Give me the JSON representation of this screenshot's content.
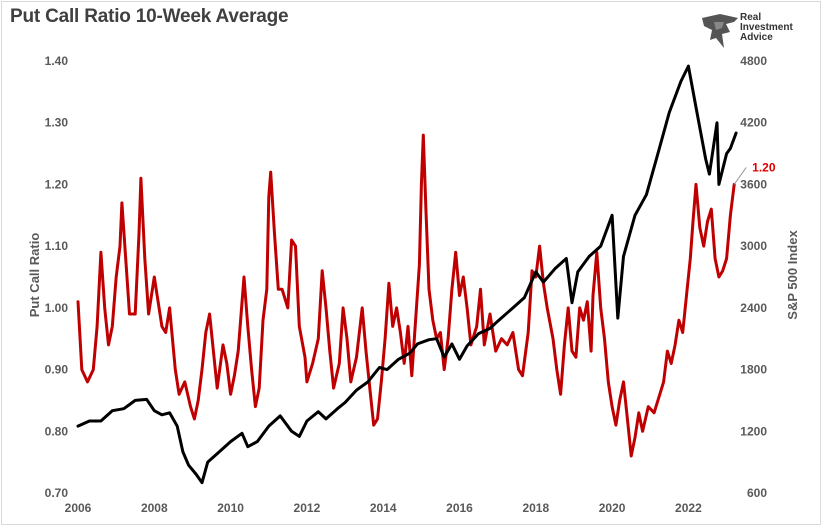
{
  "header": {
    "title": "Put Call Ratio 10-Week Average"
  },
  "brand": {
    "line1": "Real",
    "line2": "Investment",
    "line3": "Advice"
  },
  "colors": {
    "put_call": "#c00000",
    "sp500": "#000000",
    "callout": "#e00000",
    "tick_text": "#595959"
  },
  "chart_data": {
    "type": "line",
    "title": "Put Call Ratio 10-Week Average",
    "xlabel": "",
    "ylabel": "Put Call Ratio",
    "y2label": "S&P 500 Index",
    "xlim": [
      2006,
      2023.3
    ],
    "ylim": [
      0.7,
      1.4
    ],
    "y2lim": [
      600,
      4800
    ],
    "grid": false,
    "legend": "none",
    "x_ticks": [
      "2006",
      "2008",
      "2010",
      "2012",
      "2014",
      "2016",
      "2018",
      "2020",
      "2022"
    ],
    "y_ticks": [
      "0.70",
      "0.80",
      "0.90",
      "1.00",
      "1.10",
      "1.20",
      "1.30",
      "1.40"
    ],
    "y2_ticks": [
      "600",
      "1200",
      "1800",
      "2400",
      "3000",
      "3600",
      "4200",
      "4800"
    ],
    "annotation": {
      "text": "1.20",
      "x": 2023.2,
      "y": 1.2
    },
    "series": [
      {
        "axis": "left",
        "values": [
          [
            2006.0,
            1.01
          ],
          [
            2006.1,
            0.9
          ],
          [
            2006.25,
            0.88
          ],
          [
            2006.4,
            0.9
          ],
          [
            2006.5,
            0.97
          ],
          [
            2006.6,
            1.09
          ],
          [
            2006.7,
            1.0
          ],
          [
            2006.8,
            0.94
          ],
          [
            2006.9,
            0.97
          ],
          [
            2007.0,
            1.05
          ],
          [
            2007.1,
            1.1
          ],
          [
            2007.15,
            1.17
          ],
          [
            2007.25,
            1.08
          ],
          [
            2007.35,
            0.99
          ],
          [
            2007.5,
            0.99
          ],
          [
            2007.6,
            1.12
          ],
          [
            2007.65,
            1.21
          ],
          [
            2007.75,
            1.08
          ],
          [
            2007.85,
            0.99
          ],
          [
            2008.0,
            1.05
          ],
          [
            2008.1,
            1.01
          ],
          [
            2008.2,
            0.97
          ],
          [
            2008.3,
            0.96
          ],
          [
            2008.4,
            1.0
          ],
          [
            2008.55,
            0.9
          ],
          [
            2008.65,
            0.86
          ],
          [
            2008.8,
            0.88
          ],
          [
            2008.95,
            0.84
          ],
          [
            2009.05,
            0.82
          ],
          [
            2009.15,
            0.85
          ],
          [
            2009.25,
            0.9
          ],
          [
            2009.35,
            0.96
          ],
          [
            2009.45,
            0.99
          ],
          [
            2009.55,
            0.93
          ],
          [
            2009.65,
            0.87
          ],
          [
            2009.8,
            0.94
          ],
          [
            2009.9,
            0.91
          ],
          [
            2010.0,
            0.86
          ],
          [
            2010.1,
            0.89
          ],
          [
            2010.2,
            0.93
          ],
          [
            2010.35,
            1.05
          ],
          [
            2010.45,
            0.97
          ],
          [
            2010.55,
            0.9
          ],
          [
            2010.65,
            0.84
          ],
          [
            2010.75,
            0.87
          ],
          [
            2010.85,
            0.98
          ],
          [
            2010.95,
            1.03
          ],
          [
            2011.0,
            1.18
          ],
          [
            2011.05,
            1.22
          ],
          [
            2011.15,
            1.12
          ],
          [
            2011.25,
            1.03
          ],
          [
            2011.35,
            1.03
          ],
          [
            2011.5,
            1.0
          ],
          [
            2011.6,
            1.11
          ],
          [
            2011.7,
            1.1
          ],
          [
            2011.8,
            0.97
          ],
          [
            2011.95,
            0.92
          ],
          [
            2012.0,
            0.88
          ],
          [
            2012.15,
            0.91
          ],
          [
            2012.3,
            0.95
          ],
          [
            2012.4,
            1.06
          ],
          [
            2012.5,
            1.0
          ],
          [
            2012.6,
            0.93
          ],
          [
            2012.7,
            0.87
          ],
          [
            2012.85,
            0.91
          ],
          [
            2012.95,
            1.0
          ],
          [
            2013.05,
            0.95
          ],
          [
            2013.15,
            0.88
          ],
          [
            2013.3,
            0.92
          ],
          [
            2013.45,
            1.0
          ],
          [
            2013.55,
            0.93
          ],
          [
            2013.65,
            0.87
          ],
          [
            2013.75,
            0.81
          ],
          [
            2013.85,
            0.82
          ],
          [
            2013.95,
            0.88
          ],
          [
            2014.05,
            0.95
          ],
          [
            2014.15,
            1.04
          ],
          [
            2014.25,
            0.97
          ],
          [
            2014.35,
            1.0
          ],
          [
            2014.45,
            0.96
          ],
          [
            2014.55,
            0.91
          ],
          [
            2014.65,
            0.97
          ],
          [
            2014.75,
            0.89
          ],
          [
            2014.85,
            0.98
          ],
          [
            2014.95,
            1.07
          ],
          [
            2015.0,
            1.2
          ],
          [
            2015.05,
            1.28
          ],
          [
            2015.12,
            1.16
          ],
          [
            2015.2,
            1.03
          ],
          [
            2015.3,
            0.98
          ],
          [
            2015.4,
            0.95
          ],
          [
            2015.5,
            0.96
          ],
          [
            2015.6,
            0.9
          ],
          [
            2015.7,
            0.95
          ],
          [
            2015.8,
            1.03
          ],
          [
            2015.9,
            1.09
          ],
          [
            2016.0,
            1.02
          ],
          [
            2016.1,
            1.05
          ],
          [
            2016.2,
            1.0
          ],
          [
            2016.3,
            0.94
          ],
          [
            2016.45,
            0.97
          ],
          [
            2016.55,
            1.03
          ],
          [
            2016.65,
            0.94
          ],
          [
            2016.8,
            0.99
          ],
          [
            2016.95,
            0.93
          ],
          [
            2017.1,
            0.95
          ],
          [
            2017.25,
            0.94
          ],
          [
            2017.4,
            0.96
          ],
          [
            2017.55,
            0.9
          ],
          [
            2017.65,
            0.89
          ],
          [
            2017.8,
            0.96
          ],
          [
            2017.9,
            1.06
          ],
          [
            2018.0,
            1.05
          ],
          [
            2018.1,
            1.1
          ],
          [
            2018.2,
            1.04
          ],
          [
            2018.3,
            1.0
          ],
          [
            2018.45,
            0.95
          ],
          [
            2018.55,
            0.9
          ],
          [
            2018.65,
            0.86
          ],
          [
            2018.75,
            0.94
          ],
          [
            2018.85,
            1.0
          ],
          [
            2018.95,
            0.93
          ],
          [
            2019.05,
            0.92
          ],
          [
            2019.15,
            1.0
          ],
          [
            2019.25,
            0.98
          ],
          [
            2019.35,
            1.01
          ],
          [
            2019.45,
            0.93
          ],
          [
            2019.5,
            1.02
          ],
          [
            2019.6,
            1.09
          ],
          [
            2019.7,
            1.0
          ],
          [
            2019.8,
            0.95
          ],
          [
            2019.9,
            0.88
          ],
          [
            2020.0,
            0.84
          ],
          [
            2020.1,
            0.81
          ],
          [
            2020.2,
            0.85
          ],
          [
            2020.3,
            0.88
          ],
          [
            2020.4,
            0.82
          ],
          [
            2020.5,
            0.76
          ],
          [
            2020.6,
            0.79
          ],
          [
            2020.7,
            0.83
          ],
          [
            2020.8,
            0.8
          ],
          [
            2020.95,
            0.84
          ],
          [
            2021.1,
            0.83
          ],
          [
            2021.25,
            0.86
          ],
          [
            2021.35,
            0.88
          ],
          [
            2021.45,
            0.93
          ],
          [
            2021.55,
            0.91
          ],
          [
            2021.65,
            0.94
          ],
          [
            2021.75,
            0.98
          ],
          [
            2021.85,
            0.96
          ],
          [
            2021.95,
            1.02
          ],
          [
            2022.05,
            1.08
          ],
          [
            2022.12,
            1.14
          ],
          [
            2022.2,
            1.2
          ],
          [
            2022.3,
            1.13
          ],
          [
            2022.4,
            1.1
          ],
          [
            2022.5,
            1.14
          ],
          [
            2022.6,
            1.16
          ],
          [
            2022.7,
            1.08
          ],
          [
            2022.8,
            1.05
          ],
          [
            2022.9,
            1.06
          ],
          [
            2023.0,
            1.08
          ],
          [
            2023.1,
            1.15
          ],
          [
            2023.2,
            1.2
          ]
        ]
      },
      {
        "axis": "right",
        "values": [
          [
            2006.0,
            1250
          ],
          [
            2006.3,
            1300
          ],
          [
            2006.6,
            1300
          ],
          [
            2006.9,
            1400
          ],
          [
            2007.2,
            1420
          ],
          [
            2007.5,
            1500
          ],
          [
            2007.8,
            1510
          ],
          [
            2008.0,
            1400
          ],
          [
            2008.2,
            1360
          ],
          [
            2008.4,
            1380
          ],
          [
            2008.6,
            1250
          ],
          [
            2008.75,
            1000
          ],
          [
            2008.9,
            870
          ],
          [
            2009.1,
            780
          ],
          [
            2009.25,
            700
          ],
          [
            2009.4,
            900
          ],
          [
            2009.7,
            1000
          ],
          [
            2010.0,
            1100
          ],
          [
            2010.3,
            1180
          ],
          [
            2010.45,
            1050
          ],
          [
            2010.7,
            1100
          ],
          [
            2011.0,
            1250
          ],
          [
            2011.3,
            1350
          ],
          [
            2011.6,
            1200
          ],
          [
            2011.8,
            1150
          ],
          [
            2012.0,
            1300
          ],
          [
            2012.3,
            1390
          ],
          [
            2012.5,
            1320
          ],
          [
            2012.8,
            1420
          ],
          [
            2013.0,
            1480
          ],
          [
            2013.3,
            1600
          ],
          [
            2013.6,
            1680
          ],
          [
            2013.9,
            1820
          ],
          [
            2014.1,
            1800
          ],
          [
            2014.4,
            1900
          ],
          [
            2014.7,
            1960
          ],
          [
            2014.9,
            2050
          ],
          [
            2015.2,
            2090
          ],
          [
            2015.4,
            2100
          ],
          [
            2015.6,
            1920
          ],
          [
            2015.8,
            2050
          ],
          [
            2016.0,
            1900
          ],
          [
            2016.2,
            2030
          ],
          [
            2016.5,
            2150
          ],
          [
            2016.8,
            2200
          ],
          [
            2017.0,
            2270
          ],
          [
            2017.4,
            2400
          ],
          [
            2017.7,
            2500
          ],
          [
            2018.0,
            2750
          ],
          [
            2018.2,
            2650
          ],
          [
            2018.5,
            2780
          ],
          [
            2018.8,
            2880
          ],
          [
            2018.95,
            2450
          ],
          [
            2019.1,
            2750
          ],
          [
            2019.4,
            2900
          ],
          [
            2019.7,
            3000
          ],
          [
            2020.0,
            3300
          ],
          [
            2020.15,
            2300
          ],
          [
            2020.3,
            2900
          ],
          [
            2020.6,
            3300
          ],
          [
            2020.9,
            3500
          ],
          [
            2021.2,
            3900
          ],
          [
            2021.5,
            4300
          ],
          [
            2021.8,
            4600
          ],
          [
            2022.0,
            4750
          ],
          [
            2022.2,
            4350
          ],
          [
            2022.45,
            3850
          ],
          [
            2022.55,
            3700
          ],
          [
            2022.75,
            4200
          ],
          [
            2022.8,
            3600
          ],
          [
            2023.0,
            3900
          ],
          [
            2023.1,
            3950
          ],
          [
            2023.25,
            4100
          ]
        ]
      }
    ]
  },
  "axis_labels": {
    "left": "Put Call Ratio",
    "right": "S&P 500 Index"
  }
}
